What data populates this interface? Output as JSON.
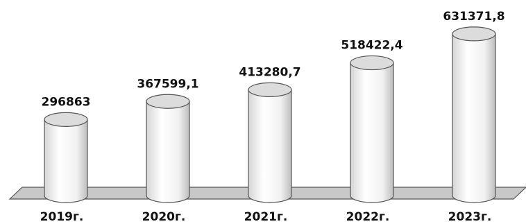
{
  "chart_data": {
    "type": "bar",
    "bar_shape": "cylinder",
    "categories": [
      "2019г.",
      "2020г.",
      "2021г.",
      "2022г.",
      "2023г."
    ],
    "values": [
      296863,
      367599.1,
      413280.7,
      518422.4,
      631371.8
    ],
    "data_labels": [
      "296863",
      "367599,1",
      "413280,7",
      "518422,4",
      "631371,8"
    ],
    "ylim": [
      0,
      650000
    ],
    "grid": false,
    "legend": "none",
    "colors": {
      "bar_fill": "#f4f4f4",
      "bar_top": "#dcdcdc",
      "floor": "#c8c8c8",
      "outline": "#555555"
    }
  }
}
